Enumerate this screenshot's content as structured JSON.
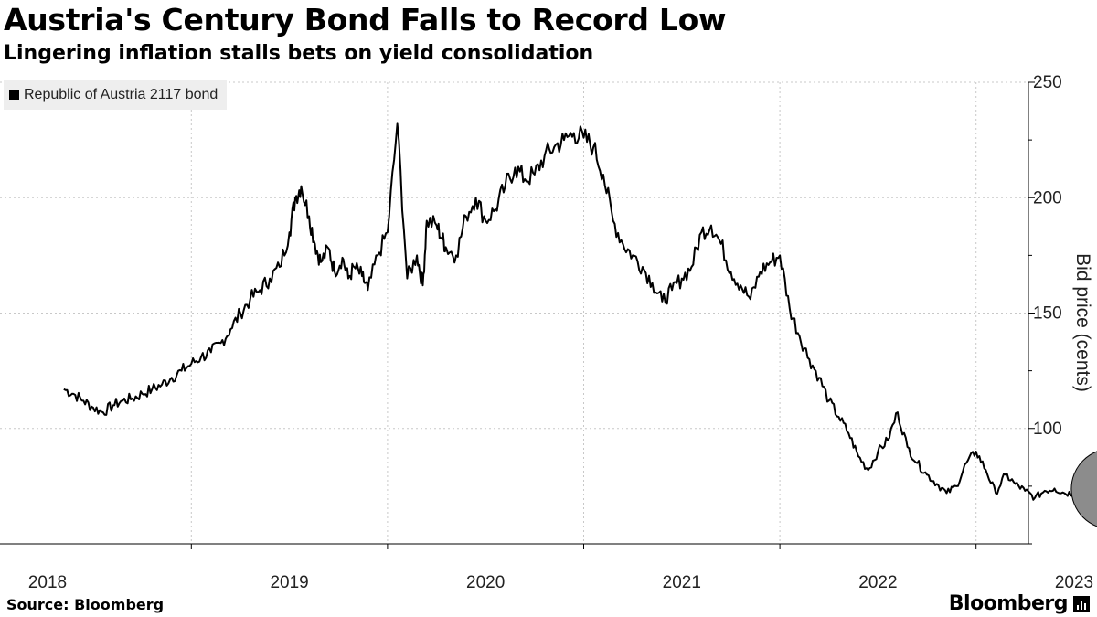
{
  "header": {
    "title": "Austria's Century Bond Falls to Record Low",
    "subtitle": "Lingering inflation stalls bets on yield consolidation"
  },
  "footer": {
    "source": "Source: Bloomberg",
    "brand": "Bloomberg"
  },
  "colors": {
    "line": "#000000",
    "highlight_fill": "#8c8c8c",
    "grid": "#c8c8c8",
    "legend_bg": "#eeeeee"
  },
  "icons": {
    "brand": "bloomberg-logo-icon"
  },
  "chart_data": {
    "type": "line",
    "title": "Austria's Century Bond Falls to Record Low",
    "subtitle": "Lingering inflation stalls bets on yield consolidation",
    "ylabel": "Bid price (cents)",
    "xlabel": "",
    "ylim": [
      50,
      250
    ],
    "yticks": [
      100,
      150,
      200,
      250
    ],
    "x_tick_labels": [
      "2018",
      "2019",
      "2020",
      "2021",
      "2022",
      "2023"
    ],
    "xrange": [
      "2017.85",
      "2023.45"
    ],
    "grid": true,
    "legend": "top-left",
    "series": [
      {
        "name": "Republic of Austria 2117 bond",
        "x": [
          2017.85,
          2017.9,
          2017.95,
          2018.0,
          2018.05,
          2018.1,
          2018.15,
          2018.2,
          2018.25,
          2018.3,
          2018.35,
          2018.4,
          2018.45,
          2018.5,
          2018.55,
          2018.6,
          2018.65,
          2018.7,
          2018.75,
          2018.8,
          2018.85,
          2018.9,
          2018.95,
          2019.0,
          2019.03,
          2019.06,
          2019.1,
          2019.13,
          2019.16,
          2019.2,
          2019.23,
          2019.27,
          2019.3,
          2019.33,
          2019.37,
          2019.4,
          2019.45,
          2019.5,
          2019.55,
          2019.6,
          2019.65,
          2019.68,
          2019.7,
          2019.75,
          2019.78,
          2019.8,
          2019.85,
          2019.9,
          2019.95,
          2020.0,
          2020.05,
          2020.1,
          2020.15,
          2020.2,
          2020.25,
          2020.3,
          2020.35,
          2020.4,
          2020.45,
          2020.5,
          2020.55,
          2020.6,
          2020.65,
          2020.7,
          2020.75,
          2020.8,
          2020.85,
          2020.9,
          2020.95,
          2021.0,
          2021.05,
          2021.1,
          2021.15,
          2021.2,
          2021.25,
          2021.3,
          2021.35,
          2021.4,
          2021.45,
          2021.5,
          2021.55,
          2021.6,
          2021.65,
          2021.7,
          2021.75,
          2021.8,
          2021.85,
          2021.9,
          2021.95,
          2022.0,
          2022.05,
          2022.1,
          2022.15,
          2022.2,
          2022.25,
          2022.3,
          2022.35,
          2022.4,
          2022.45,
          2022.5,
          2022.55,
          2022.6,
          2022.65,
          2022.7,
          2022.75,
          2022.8,
          2022.85,
          2022.9,
          2022.95,
          2023.0,
          2023.05,
          2023.1,
          2023.15,
          2023.2,
          2023.25,
          2023.3,
          2023.35,
          2023.4,
          2023.42
        ],
        "y": [
          117,
          115,
          112,
          109,
          107,
          110,
          112,
          113,
          115,
          117,
          119,
          122,
          125,
          128,
          131,
          133,
          137,
          143,
          150,
          156,
          160,
          165,
          170,
          185,
          200,
          205,
          192,
          180,
          172,
          178,
          168,
          174,
          165,
          170,
          166,
          160,
          175,
          185,
          232,
          165,
          175,
          162,
          190,
          188,
          182,
          178,
          175,
          192,
          200,
          190,
          195,
          205,
          213,
          208,
          210,
          218,
          222,
          225,
          228,
          226,
          222,
          210,
          190,
          180,
          175,
          170,
          163,
          155,
          160,
          165,
          170,
          185,
          188,
          180,
          168,
          162,
          156,
          168,
          172,
          175,
          152,
          140,
          130,
          122,
          112,
          105,
          98,
          88,
          82,
          90,
          95,
          107,
          92,
          85,
          80,
          76,
          72,
          75,
          85,
          90,
          82,
          72,
          80,
          76,
          73,
          70,
          73,
          74,
          72,
          72,
          73,
          71,
          72,
          71,
          73,
          71,
          70,
          68,
          67
        ]
      }
    ],
    "annotations": [
      {
        "type": "circle",
        "x": 2023.2,
        "y": 73,
        "note": "highlight"
      }
    ]
  }
}
